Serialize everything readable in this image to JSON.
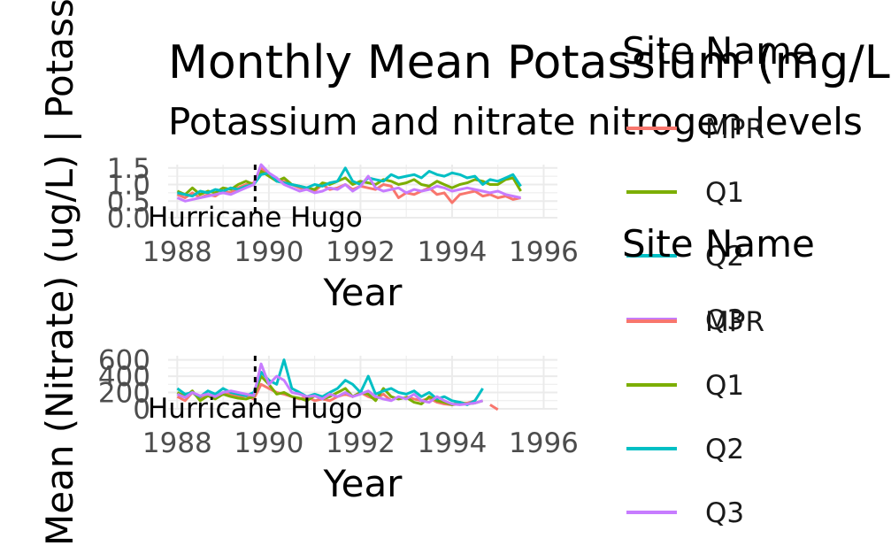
{
  "title": "Monthly Mean Potassium (mg/L)",
  "subtitle": "Potassium and nitrate nitrogen levels",
  "left_rotated_label": "Mean (Nitrate) (ug/L)  |  Potassium (mg/L)  Monter N",
  "annotation": "Hurricane Hugo",
  "colors": {
    "MPR": "#F8766D",
    "Q1": "#7CAE00",
    "Q2": "#00BFC4",
    "Q3": "#C77CFF"
  },
  "chart_data": [
    {
      "type": "line",
      "panel": "potassium",
      "xlabel": "Year",
      "ylabel": "",
      "x_ticks": [
        "1988",
        "1990",
        "1992",
        "1994",
        "1996"
      ],
      "y_ticks": [
        "0.0",
        "0.5",
        "1.0",
        "1.5"
      ],
      "xlim": [
        1987.8,
        1996.3
      ],
      "ylim": [
        0,
        1.6
      ],
      "legend_title": "Site Name",
      "legend_position": "right",
      "event": {
        "label": "Hurricane Hugo",
        "x": 1989.7
      },
      "x": [
        1988.0,
        1988.17,
        1988.33,
        1988.5,
        1988.67,
        1988.83,
        1989.0,
        1989.17,
        1989.33,
        1989.5,
        1989.67,
        1989.83,
        1990.0,
        1990.17,
        1990.33,
        1990.5,
        1990.67,
        1990.83,
        1991.0,
        1991.17,
        1991.33,
        1991.5,
        1991.67,
        1991.83,
        1992.0,
        1992.17,
        1992.33,
        1992.5,
        1992.67,
        1992.83,
        1993.0,
        1993.17,
        1993.33,
        1993.5,
        1993.67,
        1993.83,
        1994.0,
        1994.17,
        1994.33,
        1994.5,
        1994.67,
        1994.83,
        1995.0,
        1995.17,
        1995.33,
        1995.5
      ],
      "series": [
        {
          "name": "MPR",
          "values": [
            0.7,
            0.6,
            0.75,
            0.6,
            0.7,
            0.65,
            0.8,
            0.75,
            0.9,
            1.0,
            1.05,
            1.5,
            1.3,
            1.15,
            1.1,
            1.0,
            0.9,
            0.85,
            0.8,
            1.0,
            0.85,
            0.9,
            1.0,
            0.85,
            0.95,
            0.9,
            0.85,
            1.0,
            0.95,
            0.6,
            0.75,
            0.7,
            0.8,
            0.9,
            0.7,
            0.75,
            0.45,
            0.7,
            0.75,
            0.8,
            0.65,
            0.7,
            0.6,
            0.65,
            0.55,
            0.6
          ]
        },
        {
          "name": "Q1",
          "values": [
            0.8,
            0.7,
            0.9,
            0.7,
            0.8,
            0.75,
            0.9,
            0.85,
            1.0,
            1.1,
            1.0,
            1.4,
            1.25,
            1.1,
            1.2,
            1.0,
            0.95,
            0.9,
            0.85,
            1.05,
            1.0,
            1.1,
            1.2,
            1.0,
            1.1,
            1.05,
            1.0,
            1.15,
            1.1,
            1.0,
            1.05,
            1.15,
            1.0,
            0.95,
            1.1,
            1.0,
            0.9,
            1.0,
            1.05,
            1.15,
            1.1,
            1.0,
            1.0,
            1.15,
            1.2,
            0.8
          ]
        },
        {
          "name": "Q2",
          "values": [
            0.75,
            0.7,
            0.65,
            0.8,
            0.75,
            0.85,
            0.8,
            0.9,
            0.85,
            0.95,
            1.0,
            1.3,
            1.35,
            1.1,
            1.05,
            1.0,
            0.95,
            0.9,
            1.0,
            0.95,
            1.05,
            1.1,
            1.5,
            1.1,
            1.0,
            1.2,
            1.15,
            1.1,
            1.3,
            1.2,
            1.25,
            1.3,
            1.2,
            1.4,
            1.3,
            1.25,
            1.35,
            1.3,
            1.2,
            1.25,
            1.0,
            1.15,
            1.1,
            1.2,
            1.3,
            0.95
          ]
        },
        {
          "name": "Q3",
          "values": [
            0.6,
            0.5,
            0.55,
            0.6,
            0.65,
            0.7,
            0.75,
            0.7,
            0.8,
            0.9,
            1.0,
            1.6,
            1.35,
            1.2,
            1.0,
            0.9,
            0.8,
            0.85,
            0.75,
            0.8,
            0.9,
            0.85,
            1.0,
            0.8,
            0.95,
            1.25,
            0.9,
            0.8,
            0.85,
            0.9,
            0.75,
            0.85,
            0.8,
            0.85,
            0.95,
            0.9,
            0.8,
            0.85,
            0.9,
            0.85,
            0.8,
            0.75,
            0.8,
            0.7,
            0.65,
            0.6
          ]
        }
      ]
    },
    {
      "type": "line",
      "panel": "nitrate",
      "xlabel": "Year",
      "ylabel": "",
      "x_ticks": [
        "1988",
        "1990",
        "1992",
        "1994",
        "1996"
      ],
      "y_ticks": [
        "0",
        "200",
        "400",
        "600"
      ],
      "xlim": [
        1987.8,
        1996.3
      ],
      "ylim": [
        0,
        650
      ],
      "legend_title": "Site Name",
      "legend_position": "right",
      "event": {
        "label": "Hurricane Hugo",
        "x": 1989.7
      },
      "x": [
        1988.0,
        1988.17,
        1988.33,
        1988.5,
        1988.67,
        1988.83,
        1989.0,
        1989.17,
        1989.33,
        1989.5,
        1989.67,
        1989.83,
        1990.0,
        1990.17,
        1990.33,
        1990.5,
        1990.67,
        1990.83,
        1991.0,
        1991.17,
        1991.33,
        1991.5,
        1991.67,
        1991.83,
        1992.0,
        1992.17,
        1992.33,
        1992.5,
        1992.67,
        1992.83,
        1993.0,
        1993.17,
        1993.33,
        1993.5,
        1993.67,
        1993.83,
        1994.0,
        1994.17,
        1994.33,
        1994.5,
        1994.67,
        1994.83,
        1995.0
      ],
      "series": [
        {
          "name": "MPR",
          "values": [
            150,
            100,
            200,
            120,
            180,
            150,
            200,
            180,
            150,
            160,
            120,
            300,
            250,
            200,
            180,
            150,
            120,
            150,
            100,
            120,
            100,
            150,
            180,
            150,
            200,
            150,
            120,
            180,
            100,
            null,
            150,
            120,
            100,
            130,
            80,
            60,
            50,
            60,
            70,
            100,
            null,
            50,
            -10
          ]
        },
        {
          "name": "Q1",
          "values": [
            200,
            150,
            220,
            100,
            160,
            120,
            180,
            150,
            130,
            120,
            150,
            400,
            300,
            180,
            200,
            150,
            130,
            100,
            160,
            120,
            150,
            200,
            250,
            150,
            200,
            180,
            100,
            250,
            150,
            120,
            140,
            80,
            60,
            150,
            100,
            80,
            50,
            80,
            60,
            70,
            100,
            null,
            null
          ]
        },
        {
          "name": "Q2",
          "values": [
            250,
            180,
            200,
            150,
            220,
            180,
            250,
            200,
            180,
            160,
            200,
            450,
            350,
            300,
            600,
            250,
            200,
            150,
            180,
            150,
            200,
            250,
            350,
            300,
            200,
            400,
            180,
            220,
            250,
            200,
            180,
            220,
            150,
            200,
            120,
            150,
            100,
            80,
            50,
            100,
            250,
            null,
            null
          ]
        },
        {
          "name": "Q3",
          "values": [
            180,
            140,
            200,
            160,
            180,
            150,
            200,
            220,
            200,
            180,
            160,
            550,
            300,
            400,
            350,
            200,
            180,
            150,
            160,
            120,
            180,
            150,
            200,
            150,
            180,
            220,
            150,
            120,
            100,
            150,
            120,
            180,
            100,
            80,
            150,
            100,
            60,
            50,
            60,
            70,
            100,
            null,
            null
          ]
        }
      ]
    }
  ]
}
